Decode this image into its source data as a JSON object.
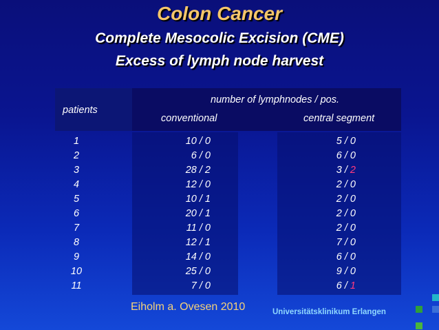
{
  "slide": {
    "title": "Colon Cancer",
    "subtitle_1": "Complete Mesocolic Excision (CME)",
    "subtitle_2": "Excess of lymph node harvest"
  },
  "table": {
    "header": {
      "patients": "patients",
      "group": "number of lymphnodes / pos.",
      "conventional": "conventional",
      "central": "central segment"
    },
    "rows": [
      {
        "patient": "1",
        "conv": "10 / 0",
        "cent_a": "5 / ",
        "cent_b": "0",
        "cent_highlight": false
      },
      {
        "patient": "2",
        "conv": "6 / 0",
        "cent_a": "6 / ",
        "cent_b": "0",
        "cent_highlight": false
      },
      {
        "patient": "3",
        "conv": "28 / 2",
        "cent_a": "3 / ",
        "cent_b": "2",
        "cent_highlight": true
      },
      {
        "patient": "4",
        "conv": "12 / 0",
        "cent_a": "2 / ",
        "cent_b": "0",
        "cent_highlight": false
      },
      {
        "patient": "5",
        "conv": "10 / 1",
        "cent_a": "2 / ",
        "cent_b": "0",
        "cent_highlight": false
      },
      {
        "patient": "6",
        "conv": "20 / 1",
        "cent_a": "2 / ",
        "cent_b": "0",
        "cent_highlight": false
      },
      {
        "patient": "7",
        "conv": "11 / 0",
        "cent_a": "2 / ",
        "cent_b": "0",
        "cent_highlight": false
      },
      {
        "patient": "8",
        "conv": "12 / 1",
        "cent_a": "7 / ",
        "cent_b": "0",
        "cent_highlight": false
      },
      {
        "patient": "9",
        "conv": "14 / 0",
        "cent_a": "6 / ",
        "cent_b": "0",
        "cent_highlight": false
      },
      {
        "patient": "10",
        "conv": "25 / 0",
        "cent_a": "9 / ",
        "cent_b": "0",
        "cent_highlight": false
      },
      {
        "patient": "11",
        "conv": "7 / 0",
        "cent_a": "6 / ",
        "cent_b": "1",
        "cent_highlight": true
      }
    ]
  },
  "footer": {
    "citation": "Eiholm a. Ovesen 2010",
    "institution": "Universitätsklinikum Erlangen"
  },
  "colors": {
    "title": "#f5c66a",
    "highlight": "#ff3b7f",
    "citation": "#f5d27a",
    "institution": "#8fd8ff"
  }
}
